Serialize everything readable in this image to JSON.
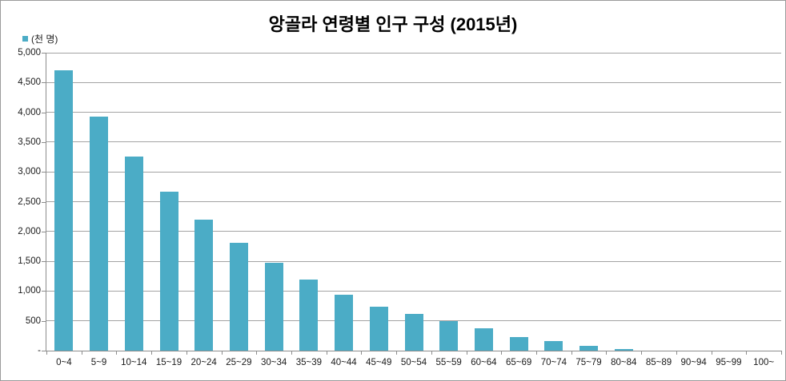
{
  "window": {
    "background": "#ffffff",
    "border_color": "#9b9b9b"
  },
  "chart_data": {
    "type": "bar",
    "title": "앙골라 연령별 인구 구성 (2015년)",
    "legend_label": "(천 명)",
    "legend_position": "top-left",
    "categories": [
      "0~4",
      "5~9",
      "10~14",
      "15~19",
      "20~24",
      "25~29",
      "30~34",
      "35~39",
      "40~44",
      "45~49",
      "50~54",
      "55~59",
      "60~64",
      "65~69",
      "70~74",
      "75~79",
      "80~84",
      "85~89",
      "90~94",
      "95~99",
      "100~"
    ],
    "values": [
      4710,
      3930,
      3260,
      2670,
      2200,
      1810,
      1470,
      1190,
      940,
      740,
      610,
      500,
      370,
      230,
      165,
      85,
      30,
      0,
      0,
      0,
      0
    ],
    "xlabel": "",
    "ylabel": "",
    "ylim": [
      0,
      5000
    ],
    "ytick_step": 500,
    "ytick_labels_top_to_bottom": [
      "5,000",
      "4,500",
      "4,000",
      "3,500",
      "3,000",
      "2,500",
      "2,000",
      "1,500",
      "1,000",
      "500",
      "-"
    ],
    "grid": "on",
    "bar_color": "#4BACC6",
    "gridline_color": "#a3a3a3",
    "axis_color": "#8c8c8c",
    "text_color": "#1a1a1a"
  }
}
